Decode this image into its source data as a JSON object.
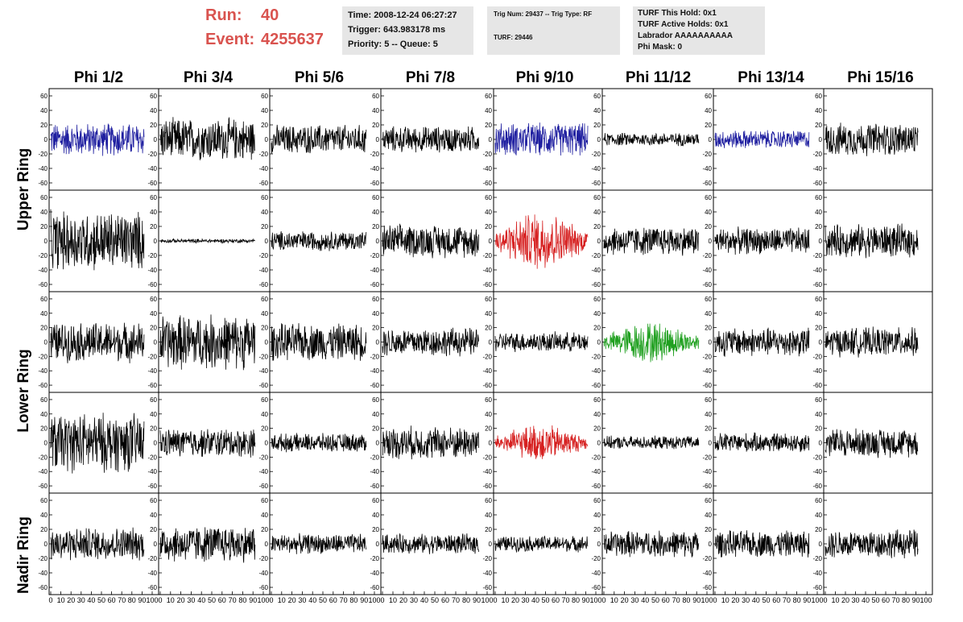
{
  "header": {
    "run_label": "Run:",
    "run_value": "40",
    "event_label": "Event:",
    "event_value": "4255637"
  },
  "info_box_1": {
    "time": "Time: 2008-12-24 06:27:27",
    "trigger": "Trigger: 643.983178 ms",
    "priority": "Priority: 5 -- Queue: 5"
  },
  "info_box_2": {
    "trig": "Trig Num: 29437 -- Trig Type: RF",
    "turf": "TURF: 29446"
  },
  "info_box_3": {
    "this_hold": "TURF This Hold: 0x1",
    "active_holds": "TURF Active Holds: 0x1",
    "labrador": "Labrador AAAAAAAAAA",
    "phi_mask": "Phi Mask: 0"
  },
  "phi_headers": [
    "Phi 1/2",
    "Phi 3/4",
    "Phi 5/6",
    "Phi 7/8",
    "Phi 9/10",
    "Phi 11/12",
    "Phi 13/14",
    "Phi 15/16"
  ],
  "ring_labels": [
    "Upper Ring",
    "Lower Ring",
    "Nadir Ring"
  ],
  "colors": {
    "default": "#000000",
    "blue": "#1f1fa0",
    "red": "#d62020",
    "green": "#20a020",
    "run_text": "#d9534f",
    "info_bg": "#e6e6e6"
  },
  "chart_data": {
    "type": "line",
    "rows": 5,
    "cols": 8,
    "x_ticks": [
      "0",
      "10",
      "20",
      "30",
      "40",
      "50",
      "60",
      "70",
      "80",
      "90",
      "100"
    ],
    "y_ticks": [
      "60",
      "40",
      "20",
      "0",
      "-20",
      "-40",
      "-60"
    ],
    "xlim": [
      0,
      100
    ],
    "ylim": [
      -70,
      70
    ],
    "panels": [
      {
        "row": 0,
        "col": 0,
        "color": "blue",
        "amplitude": 25
      },
      {
        "row": 0,
        "col": 1,
        "color": "default",
        "amplitude": 32
      },
      {
        "row": 0,
        "col": 2,
        "color": "default",
        "amplitude": 22
      },
      {
        "row": 0,
        "col": 3,
        "color": "default",
        "amplitude": 20
      },
      {
        "row": 0,
        "col": 4,
        "color": "blue",
        "amplitude": 25
      },
      {
        "row": 0,
        "col": 5,
        "color": "default",
        "amplitude": 10
      },
      {
        "row": 0,
        "col": 6,
        "color": "blue",
        "amplitude": 14
      },
      {
        "row": 0,
        "col": 7,
        "color": "default",
        "amplitude": 25
      },
      {
        "row": 1,
        "col": 0,
        "color": "default",
        "amplitude": 45
      },
      {
        "row": 1,
        "col": 1,
        "color": "default",
        "amplitude": 3
      },
      {
        "row": 1,
        "col": 2,
        "color": "default",
        "amplitude": 15
      },
      {
        "row": 1,
        "col": 3,
        "color": "default",
        "amplitude": 25
      },
      {
        "row": 1,
        "col": 4,
        "color": "red",
        "amplitude": 40
      },
      {
        "row": 1,
        "col": 5,
        "color": "default",
        "amplitude": 22
      },
      {
        "row": 1,
        "col": 6,
        "color": "default",
        "amplitude": 20
      },
      {
        "row": 1,
        "col": 7,
        "color": "default",
        "amplitude": 25
      },
      {
        "row": 2,
        "col": 0,
        "color": "default",
        "amplitude": 30
      },
      {
        "row": 2,
        "col": 1,
        "color": "default",
        "amplitude": 42
      },
      {
        "row": 2,
        "col": 2,
        "color": "default",
        "amplitude": 28
      },
      {
        "row": 2,
        "col": 3,
        "color": "default",
        "amplitude": 22
      },
      {
        "row": 2,
        "col": 4,
        "color": "default",
        "amplitude": 15
      },
      {
        "row": 2,
        "col": 5,
        "color": "green",
        "amplitude": 28
      },
      {
        "row": 2,
        "col": 6,
        "color": "default",
        "amplitude": 22
      },
      {
        "row": 2,
        "col": 7,
        "color": "default",
        "amplitude": 22
      },
      {
        "row": 3,
        "col": 0,
        "color": "default",
        "amplitude": 45
      },
      {
        "row": 3,
        "col": 1,
        "color": "default",
        "amplitude": 22
      },
      {
        "row": 3,
        "col": 2,
        "color": "default",
        "amplitude": 14
      },
      {
        "row": 3,
        "col": 3,
        "color": "default",
        "amplitude": 25
      },
      {
        "row": 3,
        "col": 4,
        "color": "red",
        "amplitude": 25
      },
      {
        "row": 3,
        "col": 5,
        "color": "default",
        "amplitude": 10
      },
      {
        "row": 3,
        "col": 6,
        "color": "default",
        "amplitude": 15
      },
      {
        "row": 3,
        "col": 7,
        "color": "default",
        "amplitude": 22
      },
      {
        "row": 4,
        "col": 0,
        "color": "default",
        "amplitude": 25
      },
      {
        "row": 4,
        "col": 1,
        "color": "default",
        "amplitude": 28
      },
      {
        "row": 4,
        "col": 2,
        "color": "default",
        "amplitude": 15
      },
      {
        "row": 4,
        "col": 3,
        "color": "default",
        "amplitude": 15
      },
      {
        "row": 4,
        "col": 4,
        "color": "default",
        "amplitude": 12
      },
      {
        "row": 4,
        "col": 5,
        "color": "default",
        "amplitude": 20
      },
      {
        "row": 4,
        "col": 6,
        "color": "default",
        "amplitude": 20
      },
      {
        "row": 4,
        "col": 7,
        "color": "default",
        "amplitude": 22
      }
    ]
  }
}
